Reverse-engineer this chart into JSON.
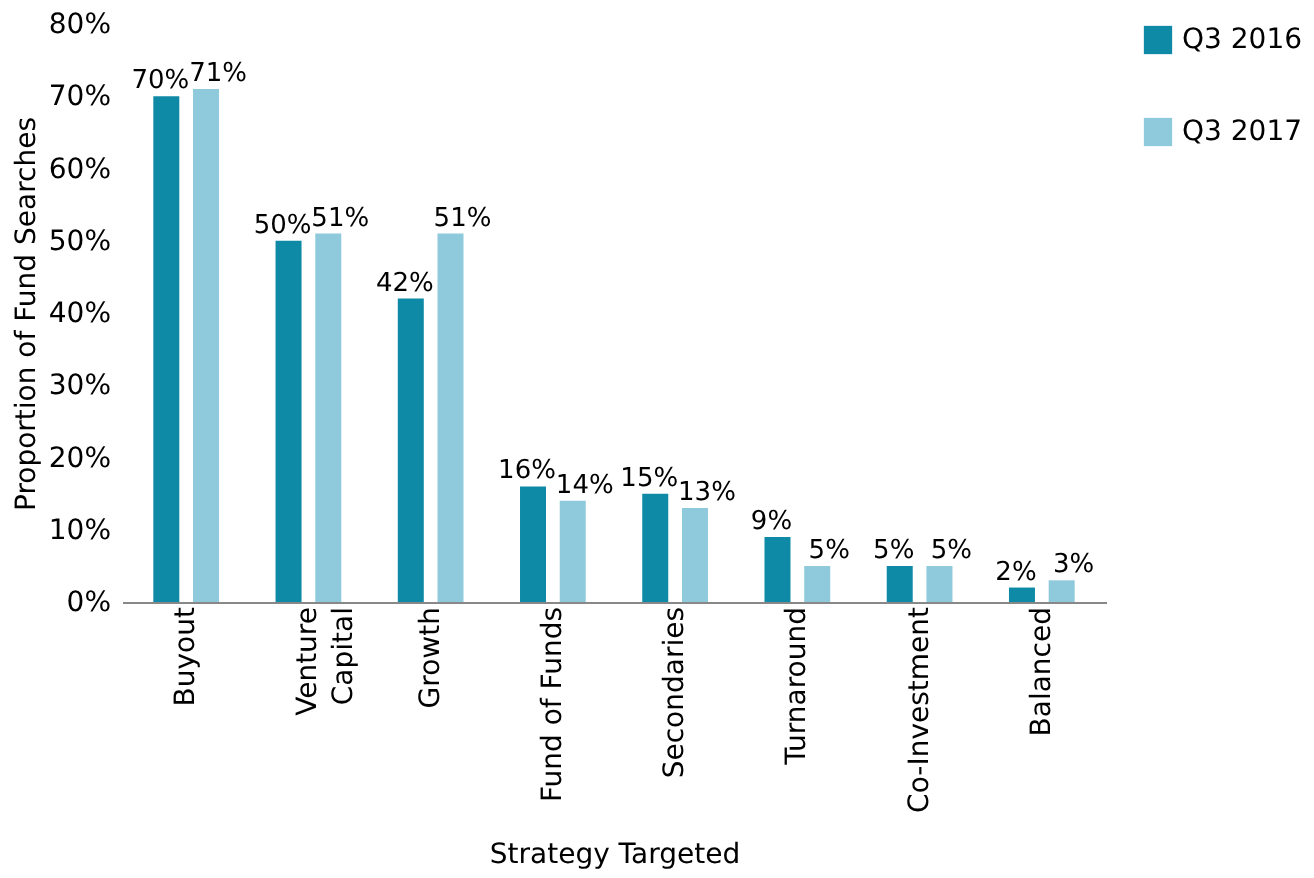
{
  "chart_data": {
    "type": "bar",
    "xlabel": "Strategy Targeted",
    "ylabel": "Proportion of Fund Searches",
    "categories": [
      "Buyout",
      "Venture\nCapital",
      "Growth",
      "Fund of Funds",
      "Secondaries",
      "Turnaround",
      "Co-Investment",
      "Balanced"
    ],
    "series": [
      {
        "name": "Q3 2016",
        "color": "#0e8aa6",
        "values": [
          70,
          50,
          42,
          16,
          15,
          9,
          5,
          2
        ],
        "value_labels": [
          "70%",
          "50%",
          "42%",
          "16%",
          "15%",
          "9%",
          "5%",
          "2%"
        ]
      },
      {
        "name": "Q3 2017",
        "color": "#8ec9dc",
        "values": [
          71,
          51,
          51,
          14,
          13,
          5,
          5,
          3
        ],
        "value_labels": [
          "71%",
          "51%",
          "51%",
          "14%",
          "13%",
          "5%",
          "5%",
          "3%"
        ]
      }
    ],
    "ylim": [
      0,
      80
    ],
    "yticks": [
      {
        "value": 0,
        "label": "0%"
      },
      {
        "value": 10,
        "label": "10%"
      },
      {
        "value": 20,
        "label": "20%"
      },
      {
        "value": 30,
        "label": "30%"
      },
      {
        "value": 40,
        "label": "40%"
      },
      {
        "value": 50,
        "label": "50%"
      },
      {
        "value": 60,
        "label": "60%"
      },
      {
        "value": 70,
        "label": "70%"
      },
      {
        "value": 80,
        "label": "80%"
      }
    ],
    "grid": false,
    "legend": "right"
  }
}
